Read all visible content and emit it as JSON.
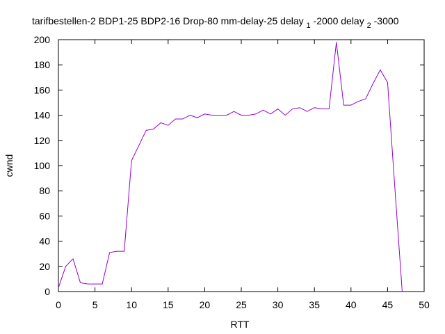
{
  "chart_data": {
    "type": "line",
    "title": "tarifbestellen-2 BDP1-25 BDP2-16 Drop-80 mm-delay-25 delay",
    "title_sub1": "1",
    "title_mid": "-2000 delay",
    "title_sub2": "2",
    "title_end": "-3000",
    "xlabel": "RTT",
    "ylabel": "cwnd",
    "xlim": [
      0,
      50
    ],
    "ylim": [
      0,
      200
    ],
    "xticks": [
      0,
      5,
      10,
      15,
      20,
      25,
      30,
      35,
      40,
      45,
      50
    ],
    "yticks": [
      0,
      20,
      40,
      60,
      80,
      100,
      120,
      140,
      160,
      180,
      200
    ],
    "grid": false,
    "line_color": "#9400d3",
    "series": [
      {
        "x": [
          0,
          1,
          2,
          3,
          4,
          5,
          6,
          7,
          8,
          9,
          10,
          11,
          12,
          13,
          14,
          15,
          16,
          17,
          18,
          19,
          20,
          21,
          22,
          23,
          24,
          25,
          26,
          27,
          28,
          29,
          30,
          31,
          32,
          33,
          34,
          35,
          36,
          37,
          38,
          39,
          40,
          41,
          42,
          43,
          44,
          45,
          46,
          47
        ],
        "y": [
          3,
          20,
          26,
          7,
          6,
          6,
          6,
          31,
          32,
          32,
          104,
          116,
          128,
          129,
          134,
          132,
          137,
          137,
          140,
          138,
          141,
          140,
          140,
          140,
          143,
          140,
          140,
          141,
          144,
          141,
          145,
          140,
          145,
          146,
          143,
          146,
          145,
          145,
          198,
          148,
          148,
          151,
          153,
          165,
          176,
          166,
          82,
          0
        ]
      }
    ]
  }
}
